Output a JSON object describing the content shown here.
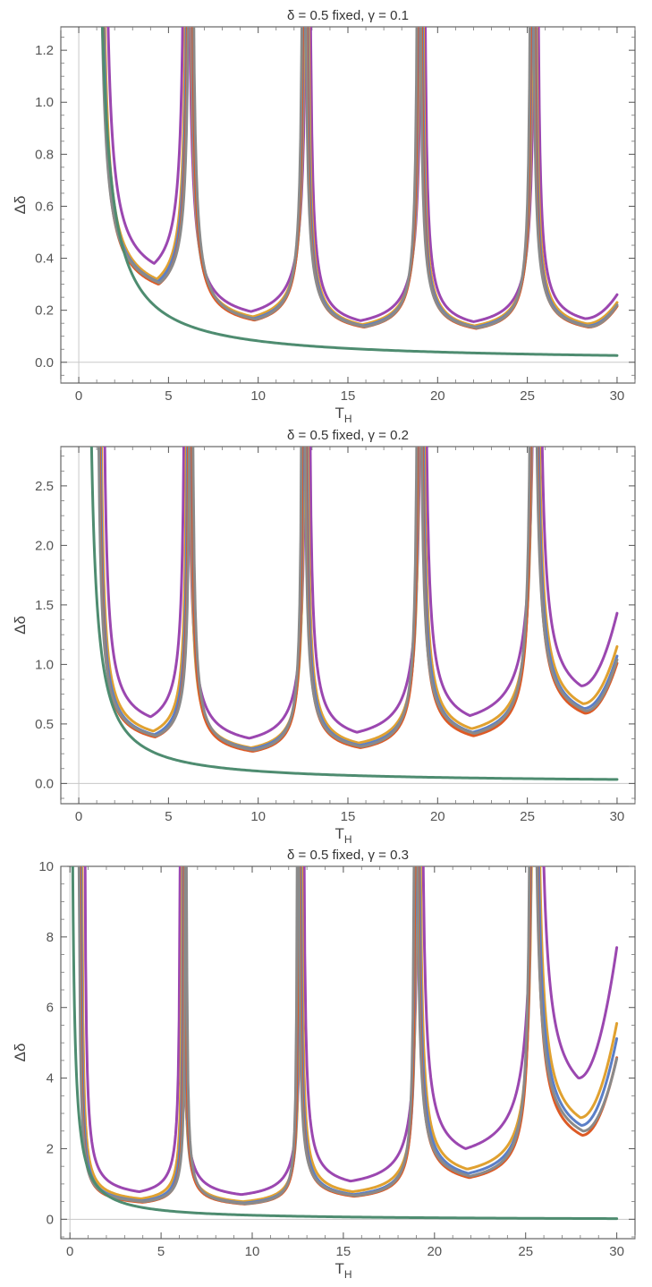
{
  "chart_data": [
    {
      "type": "line",
      "title": "δ = 0.5 fixed, γ = 0.1",
      "xlabel": "T",
      "xlabel_sub": "H",
      "ylabel": "Δδ",
      "xlim": [
        -1,
        31
      ],
      "ylim": [
        -0.08,
        1.29
      ],
      "xticks": [
        "0",
        "5",
        "10",
        "15",
        "20",
        "25",
        "30"
      ],
      "yticks": [
        "0.0",
        "0.2",
        "0.4",
        "0.6",
        "0.8",
        "1.0",
        "1.2"
      ],
      "clip": 1.27,
      "series": [
        {
          "name": "purple",
          "color": "#9b47b0",
          "poles": [
            1.3,
            6.0,
            12.8,
            19.2,
            25.5
          ],
          "minima": [
            [
              4.2,
              0.38
            ],
            [
              9.6,
              0.195
            ],
            [
              15.7,
              0.16
            ],
            [
              22.0,
              0.156
            ],
            [
              28.2,
              0.168
            ]
          ],
          "end": 0.26
        },
        {
          "name": "orange",
          "color": "#e0a130",
          "poles": [
            1.15,
            6.1,
            12.7,
            19.1,
            25.4
          ],
          "minima": [
            [
              4.35,
              0.32
            ],
            [
              9.7,
              0.175
            ],
            [
              15.8,
              0.145
            ],
            [
              22.05,
              0.14
            ],
            [
              28.3,
              0.148
            ]
          ],
          "end": 0.23
        },
        {
          "name": "blue",
          "color": "#5b7fc7",
          "poles": [
            1.1,
            6.15,
            12.65,
            19.05,
            25.35
          ],
          "minima": [
            [
              4.4,
              0.31
            ],
            [
              9.75,
              0.168
            ],
            [
              15.85,
              0.14
            ],
            [
              22.1,
              0.135
            ],
            [
              28.35,
              0.14
            ]
          ],
          "end": 0.22
        },
        {
          "name": "red",
          "color": "#dd5a25",
          "poles": [
            1.05,
            6.2,
            12.6,
            19.0,
            25.3
          ],
          "minima": [
            [
              4.45,
              0.3
            ],
            [
              9.8,
              0.162
            ],
            [
              15.9,
              0.135
            ],
            [
              22.15,
              0.13
            ],
            [
              28.4,
              0.135
            ]
          ],
          "end": 0.215
        },
        {
          "name": "gray",
          "color": "#8a8a8a",
          "poles": [
            1.0,
            6.25,
            12.55,
            18.95,
            25.25
          ],
          "minima": [
            [
              4.5,
              0.305
            ],
            [
              9.85,
              0.165
            ],
            [
              15.95,
              0.137
            ],
            [
              22.2,
              0.132
            ],
            [
              28.45,
              0.137
            ]
          ],
          "end": 0.22
        }
      ],
      "decay": {
        "name": "green",
        "color": "#4e8c70",
        "k": 0.845,
        "x0": 0.75
      }
    },
    {
      "type": "line",
      "title": "δ = 0.5 fixed, γ = 0.2",
      "xlabel": "T",
      "xlabel_sub": "H",
      "ylabel": "Δδ",
      "xlim": [
        -1,
        31
      ],
      "ylim": [
        -0.17,
        2.83
      ],
      "xticks": [
        "0",
        "5",
        "10",
        "15",
        "20",
        "25",
        "30"
      ],
      "yticks": [
        "0.0",
        "0.5",
        "1.0",
        "1.5",
        "2.0",
        "2.5"
      ],
      "clip": 2.82,
      "series": [
        {
          "name": "purple",
          "color": "#9b47b0",
          "poles": [
            1.25,
            6.0,
            12.75,
            19.2,
            25.55
          ],
          "minima": [
            [
              4.0,
              0.56
            ],
            [
              9.5,
              0.38
            ],
            [
              15.5,
              0.43
            ],
            [
              21.8,
              0.57
            ],
            [
              28.0,
              0.82
            ]
          ],
          "end": 1.43
        },
        {
          "name": "orange",
          "color": "#e0a130",
          "poles": [
            1.1,
            6.1,
            12.65,
            19.1,
            25.45
          ],
          "minima": [
            [
              4.15,
              0.44
            ],
            [
              9.6,
              0.3
            ],
            [
              15.6,
              0.34
            ],
            [
              21.9,
              0.46
            ],
            [
              28.1,
              0.67
            ]
          ],
          "end": 1.15
        },
        {
          "name": "blue",
          "color": "#5b7fc7",
          "poles": [
            1.05,
            6.15,
            12.6,
            19.05,
            25.4
          ],
          "minima": [
            [
              4.2,
              0.41
            ],
            [
              9.65,
              0.29
            ],
            [
              15.65,
              0.32
            ],
            [
              21.95,
              0.43
            ],
            [
              28.15,
              0.63
            ]
          ],
          "end": 1.07
        },
        {
          "name": "red",
          "color": "#dd5a25",
          "poles": [
            1.0,
            6.2,
            12.55,
            19.0,
            25.35
          ],
          "minima": [
            [
              4.25,
              0.39
            ],
            [
              9.7,
              0.27
            ],
            [
              15.7,
              0.3
            ],
            [
              22.0,
              0.4
            ],
            [
              28.2,
              0.59
            ]
          ],
          "end": 1.01
        },
        {
          "name": "gray",
          "color": "#8a8a8a",
          "poles": [
            0.95,
            6.25,
            12.5,
            18.95,
            25.3
          ],
          "minima": [
            [
              4.3,
              0.4
            ],
            [
              9.75,
              0.28
            ],
            [
              15.75,
              0.31
            ],
            [
              22.05,
              0.42
            ],
            [
              28.25,
              0.61
            ]
          ],
          "end": 1.04
        }
      ],
      "decay": {
        "name": "green",
        "color": "#4e8c70",
        "k": 1.11,
        "x0": 0.38
      }
    },
    {
      "type": "line",
      "title": "δ = 0.5 fixed, γ = 0.3",
      "xlabel": "T",
      "xlabel_sub": "H",
      "ylabel": "Δδ",
      "xlim": [
        -0.5,
        31
      ],
      "ylim": [
        -0.55,
        10.0
      ],
      "xticks": [
        "0",
        "5",
        "10",
        "15",
        "20",
        "25",
        "30"
      ],
      "yticks": [
        "0",
        "2",
        "4",
        "6",
        "8",
        "10"
      ],
      "clip": 9.45,
      "series": [
        {
          "name": "purple",
          "color": "#9b47b0",
          "poles": [
            0.75,
            6.1,
            12.75,
            19.2,
            25.6
          ],
          "minima": [
            [
              3.8,
              0.78
            ],
            [
              9.4,
              0.7
            ],
            [
              15.4,
              1.08
            ],
            [
              21.7,
              2.0
            ],
            [
              27.9,
              4.0
            ]
          ],
          "end": 7.7
        },
        {
          "name": "orange",
          "color": "#e0a130",
          "poles": [
            0.6,
            6.2,
            12.65,
            19.1,
            25.5
          ],
          "minima": [
            [
              3.9,
              0.58
            ],
            [
              9.5,
              0.5
            ],
            [
              15.5,
              0.78
            ],
            [
              21.8,
              1.42
            ],
            [
              28.0,
              2.88
            ]
          ],
          "end": 5.55
        },
        {
          "name": "blue",
          "color": "#5b7fc7",
          "poles": [
            0.55,
            6.25,
            12.6,
            19.05,
            25.45
          ],
          "minima": [
            [
              3.95,
              0.52
            ],
            [
              9.55,
              0.46
            ],
            [
              15.55,
              0.7
            ],
            [
              21.85,
              1.3
            ],
            [
              28.05,
              2.66
            ]
          ],
          "end": 5.12
        },
        {
          "name": "red",
          "color": "#dd5a25",
          "poles": [
            0.5,
            6.3,
            12.55,
            19.0,
            25.4
          ],
          "minima": [
            [
              4.0,
              0.48
            ],
            [
              9.6,
              0.43
            ],
            [
              15.6,
              0.65
            ],
            [
              21.9,
              1.18
            ],
            [
              28.1,
              2.38
            ]
          ],
          "end": 4.58
        },
        {
          "name": "gray",
          "color": "#8a8a8a",
          "poles": [
            0.45,
            6.35,
            12.5,
            18.95,
            25.35
          ],
          "minima": [
            [
              4.05,
              0.5
            ],
            [
              9.65,
              0.44
            ],
            [
              15.65,
              0.67
            ],
            [
              21.95,
              1.22
            ],
            [
              28.15,
              2.5
            ]
          ],
          "end": 4.55
        }
      ],
      "decay": {
        "name": "green",
        "color": "#4e8c70",
        "k": 1.6,
        "x0": 0.03
      }
    }
  ]
}
